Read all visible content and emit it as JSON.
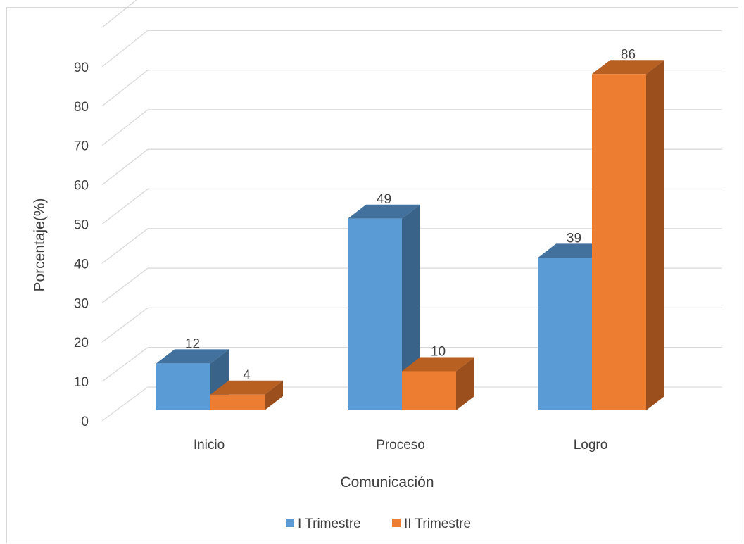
{
  "chart_data": {
    "type": "bar",
    "style": "3d-clustered-column",
    "categories": [
      "Inicio",
      "Proceso",
      "Logro"
    ],
    "series": [
      {
        "name": "I Trimestre",
        "values": [
          12,
          49,
          39
        ],
        "color": "#5b9bd5",
        "side_color": "#3a6389",
        "top_color": "#41719c"
      },
      {
        "name": "II Trimestre",
        "values": [
          4,
          10,
          86
        ],
        "color": "#ed7d31",
        "side_color": "#9a4f1c",
        "top_color": "#b85f22"
      }
    ],
    "y_ticks": [
      0,
      10,
      20,
      30,
      40,
      50,
      60,
      70,
      80,
      90
    ],
    "ylim": [
      0,
      90
    ],
    "xlabel": "Comunicación",
    "ylabel": "Porcentaje(%)",
    "grid": true,
    "legend_position": "bottom",
    "data_labels": true
  }
}
